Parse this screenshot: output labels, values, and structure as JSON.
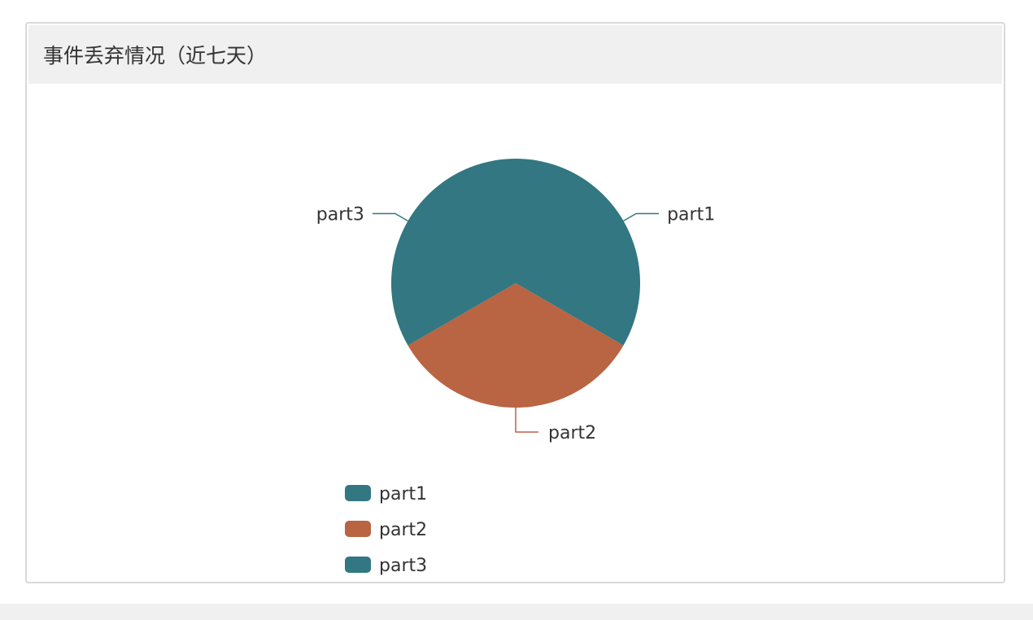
{
  "panel": {
    "title": "事件丢弃情况（近七天）"
  },
  "chart_data": {
    "type": "pie",
    "title": "事件丢弃情况（近七天）",
    "categories": [
      "part1",
      "part2",
      "part3"
    ],
    "values": [
      1,
      1,
      1
    ],
    "colors": [
      "#327782",
      "#b96443",
      "#327782"
    ],
    "legend": {
      "position": "bottom-left",
      "items": [
        "part1",
        "part2",
        "part3"
      ]
    }
  }
}
